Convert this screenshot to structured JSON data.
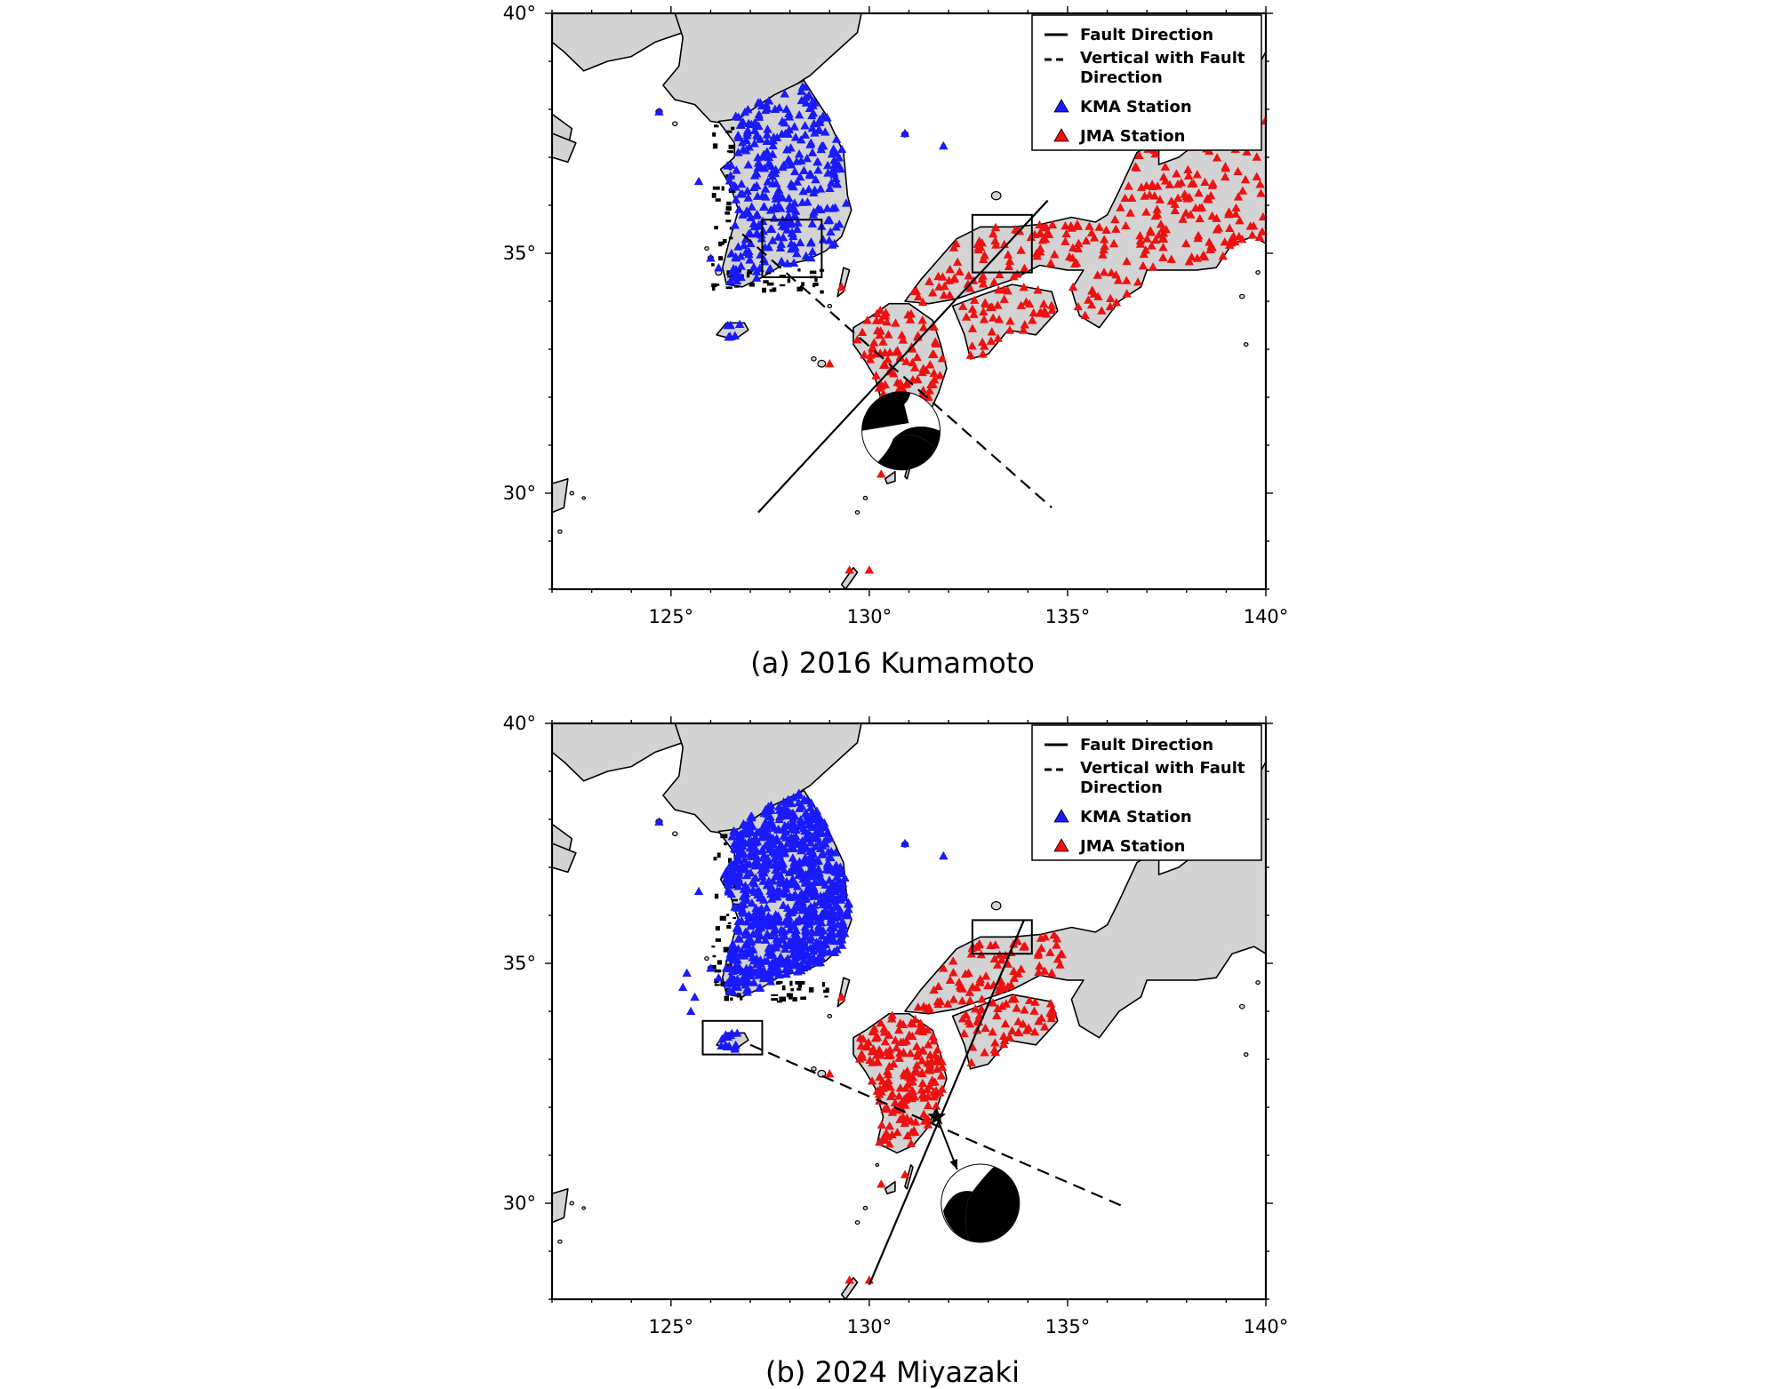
{
  "figure": {
    "panels": [
      {
        "id": "a",
        "caption": "(a)  2016  Kumamoto",
        "map": {
          "lon_range": [
            122,
            140
          ],
          "lat_range": [
            28,
            40
          ],
          "lon_ticks": [
            "125°",
            "130°",
            "135°",
            "140°"
          ],
          "lat_ticks": [
            "30°",
            "35°",
            "40°"
          ],
          "legend": {
            "items": [
              "Fault Direction",
              "Vertical with Fault",
              "Direction",
              "KMA Station",
              "JMA Station"
            ]
          },
          "stations": {
            "kma_color": "#1a1aff",
            "jma_color": "#ee1111",
            "kma_density": "moderate",
            "jma_density": "dense",
            "jma_extent": "Kyushu through central Honshu"
          },
          "fault_line": {
            "from": [
              127.2,
              29.6
            ],
            "to": [
              134.5,
              36.1
            ]
          },
          "perpendicular_line": {
            "from": [
              126.8,
              35.4
            ],
            "to": [
              134.6,
              29.7
            ]
          },
          "boxes": [
            {
              "lon": [
                127.3,
                128.8
              ],
              "lat": [
                34.5,
                35.7
              ]
            },
            {
              "lon": [
                132.6,
                134.1
              ],
              "lat": [
                34.6,
                35.8
              ]
            }
          ],
          "beachball": {
            "lon": 130.8,
            "lat": 31.3,
            "style": "strike-slip"
          },
          "epicenter_star": false
        }
      },
      {
        "id": "b",
        "caption": "(b)  2024  Miyazaki",
        "map": {
          "lon_range": [
            122,
            140
          ],
          "lat_range": [
            28,
            40
          ],
          "lon_ticks": [
            "125°",
            "130°",
            "135°",
            "140°"
          ],
          "lat_ticks": [
            "30°",
            "35°",
            "40°"
          ],
          "legend": {
            "items": [
              "Fault Direction",
              "Vertical with Fault",
              "Direction",
              "KMA Station",
              "JMA Station"
            ]
          },
          "stations": {
            "kma_color": "#1a1aff",
            "jma_color": "#ee1111",
            "kma_density": "very dense",
            "jma_density": "dense",
            "jma_extent": "Kyushu and western Honshu / Shikoku"
          },
          "fault_line": {
            "from": [
              130.0,
              28.3
            ],
            "to": [
              133.9,
              35.9
            ]
          },
          "perpendicular_line": {
            "from": [
              127.0,
              33.3
            ],
            "to": [
              136.5,
              29.9
            ]
          },
          "boxes": [
            {
              "lon": [
                125.8,
                127.3
              ],
              "lat": [
                33.1,
                33.8
              ]
            },
            {
              "lon": [
                132.6,
                134.1
              ],
              "lat": [
                35.2,
                35.9
              ]
            }
          ],
          "beachball": {
            "lon": 132.8,
            "lat": 30.0,
            "style": "thrust"
          },
          "epicenter_star": true,
          "epicenter": {
            "lon": 131.7,
            "lat": 31.8
          }
        }
      }
    ]
  }
}
